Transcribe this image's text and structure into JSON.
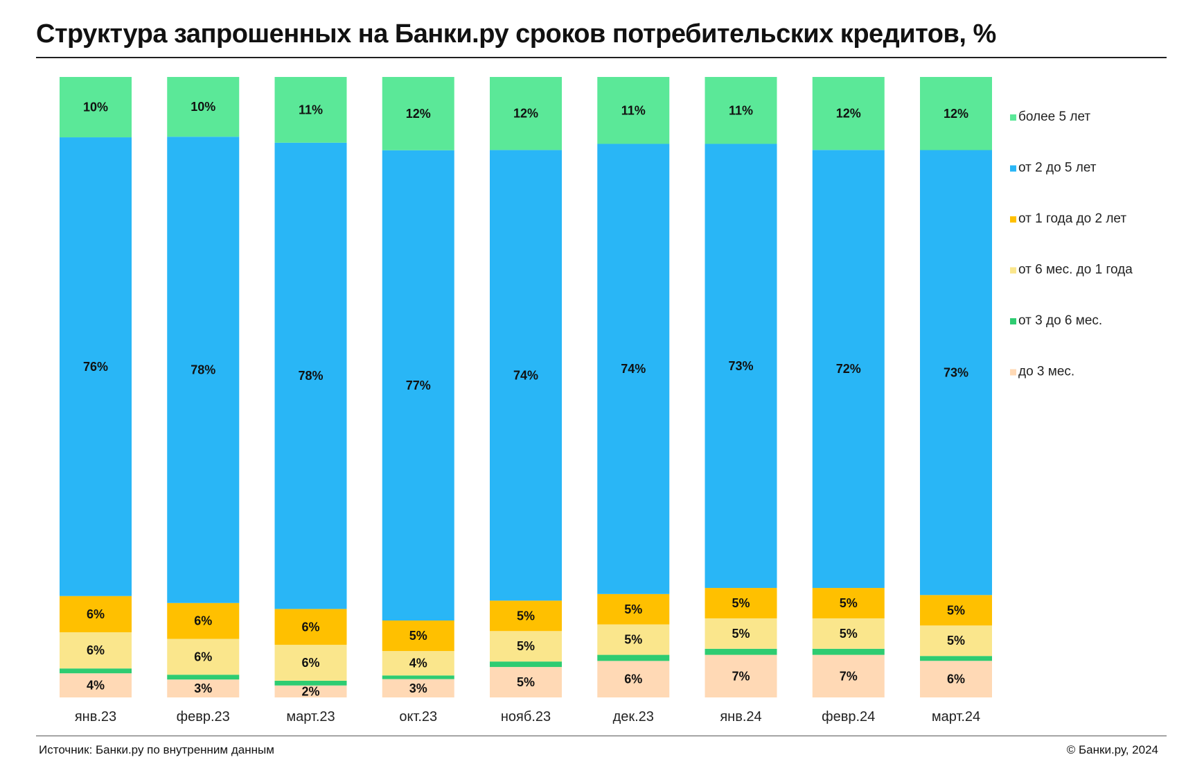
{
  "header": {
    "title": "Структура запрошенных на Банки.ру  сроков потребительских кредитов, %"
  },
  "footer": {
    "source": "Источник: Банки.ру по внутренним данным",
    "copyright": "© Банки.ру, 2024"
  },
  "chart_data": {
    "type": "bar",
    "stacked": true,
    "categories": [
      "янв.23",
      "февр.23",
      "март.23",
      "окт.23",
      "нояб.23",
      "дек.23",
      "янв.24",
      "февр.24",
      "март.24"
    ],
    "series": [
      {
        "name": "до 3 мес.",
        "color": "#FFD9B5",
        "values": [
          4,
          3,
          2,
          3,
          5,
          6,
          7,
          7,
          6
        ],
        "labels": [
          "4%",
          "3%",
          "2%",
          "3%",
          "5%",
          "6%",
          "7%",
          "7%",
          "6%"
        ]
      },
      {
        "name": "от 3 до 6 мес.",
        "color": "#2ECC71",
        "values": [
          0.8,
          0.8,
          0.8,
          0.6,
          0.9,
          1.0,
          1.0,
          1.0,
          0.8
        ],
        "labels": []
      },
      {
        "name": "от 6 мес. до 1 года",
        "color": "#FAE68C",
        "values": [
          6,
          6,
          6,
          4,
          5,
          5,
          5,
          5,
          5
        ],
        "labels": [
          "6%",
          "6%",
          "6%",
          "4%",
          "5%",
          "5%",
          "5%",
          "5%",
          "5%"
        ]
      },
      {
        "name": "от 1 года до 2 лет",
        "color": "#FFC000",
        "values": [
          6,
          6,
          6,
          5,
          5,
          5,
          5,
          5,
          5
        ],
        "labels": [
          "6%",
          "6%",
          "6%",
          "5%",
          "5%",
          "5%",
          "5%",
          "5%",
          "5%"
        ]
      },
      {
        "name": "от 2 до 5 лет",
        "color": "#29B6F6",
        "values": [
          76,
          78,
          78,
          77,
          74,
          74,
          73,
          72,
          73
        ],
        "labels": [
          "76%",
          "78%",
          "78%",
          "77%",
          "74%",
          "74%",
          "73%",
          "72%",
          "73%"
        ]
      },
      {
        "name": "более 5 лет",
        "color": "#5BE898",
        "values": [
          10,
          10,
          11,
          12,
          12,
          11,
          11,
          12,
          12
        ],
        "labels": [
          "10%",
          "10%",
          "11%",
          "12%",
          "12%",
          "11%",
          "11%",
          "12%",
          "12%"
        ]
      }
    ],
    "legend_order": [
      "более 5 лет",
      "от 2 до 5 лет",
      "от 1 года до 2 лет",
      "от 6 мес. до 1 года",
      "от 3 до 6 мес.",
      "до 3 мес."
    ],
    "legend_placement": "right",
    "grid": false
  }
}
